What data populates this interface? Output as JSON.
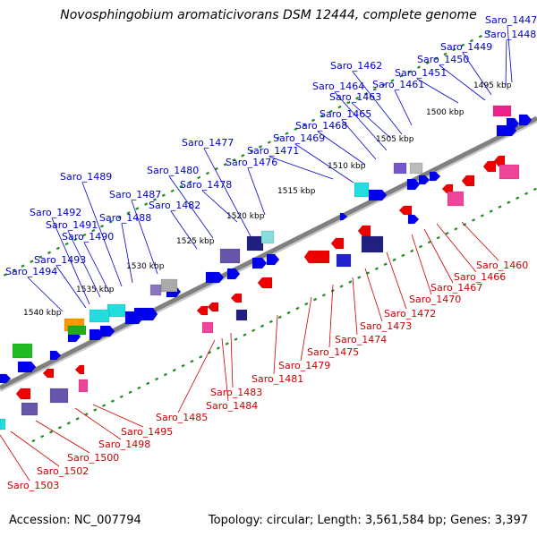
{
  "title": "Novosphingobium aromaticivorans DSM 12444, complete genome",
  "footer": {
    "accession": "Accession: NC_007794",
    "info": "Topology: circular; Length: 3,561,584 bp; Genes: 3,397"
  },
  "kbp_labels": [
    "1495 kbp",
    "1500 kbp",
    "1505 kbp",
    "1510 kbp",
    "1515 kbp",
    "1520 kbp",
    "1525 kbp",
    "1530 kbp",
    "1535 kbp",
    "1540 kbp"
  ],
  "top_genes": [
    "Saro_1447",
    "Saro_1448",
    "Saro_1449",
    "Saro_1450",
    "Saro_1451",
    "Saro_1461",
    "Saro_1462",
    "Saro_1463",
    "Saro_1464",
    "Saro_1465",
    "Saro_1468",
    "Saro_1469",
    "Saro_1471",
    "Saro_1476",
    "Saro_1477",
    "Saro_1478",
    "Saro_1480",
    "Saro_1482",
    "Saro_1487",
    "Saro_1488",
    "Saro_1489",
    "Saro_1490",
    "Saro_1491",
    "Saro_1492",
    "Saro_1493",
    "Saro_1494"
  ],
  "bottom_genes": [
    "Saro_1460",
    "Saro_1466",
    "Saro_1467",
    "Saro_1470",
    "Saro_1472",
    "Saro_1473",
    "Saro_1474",
    "Saro_1475",
    "Saro_1479",
    "Saro_1481",
    "Saro_1483",
    "Saro_1484",
    "Saro_1485",
    "Saro_1495",
    "Saro_1498",
    "Saro_1500",
    "Saro_1502",
    "Saro_1503"
  ],
  "colors": {
    "forward": "#0000ee",
    "reverse": "#ee0000",
    "top_label": "#0000cc",
    "bottom_label": "#cc0000",
    "tick": "#228b22",
    "backbone": "#808080"
  }
}
